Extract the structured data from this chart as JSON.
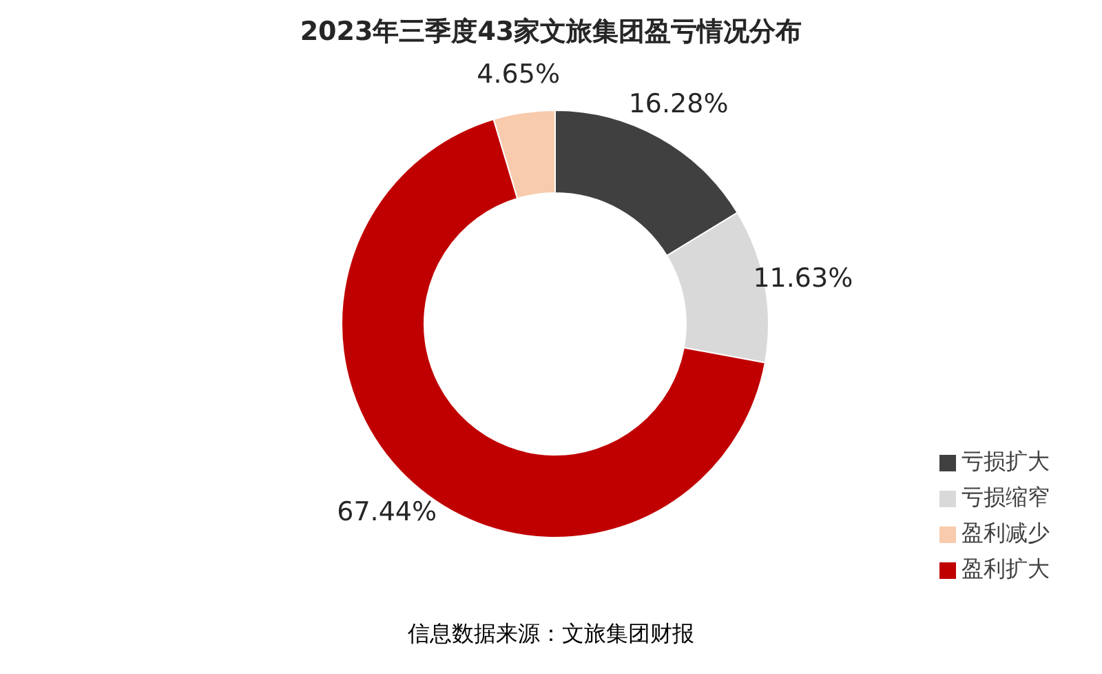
{
  "chart_data": {
    "type": "donut",
    "title": "2023年三季度43家文旅集团盈亏情况分布",
    "categories": [
      "亏损扩大",
      "亏损缩窄",
      "盈利扩大",
      "盈利减少"
    ],
    "values": [
      16.28,
      11.63,
      67.44,
      4.65
    ],
    "colors": [
      "#404040",
      "#d9d9d9",
      "#c00000",
      "#f8cbad"
    ],
    "value_labels": [
      "16.28%",
      "11.63%",
      "67.44%",
      "4.65%"
    ],
    "legend": "bottom right",
    "annotations": [
      "信息数据来源：文旅集团财报"
    ]
  }
}
